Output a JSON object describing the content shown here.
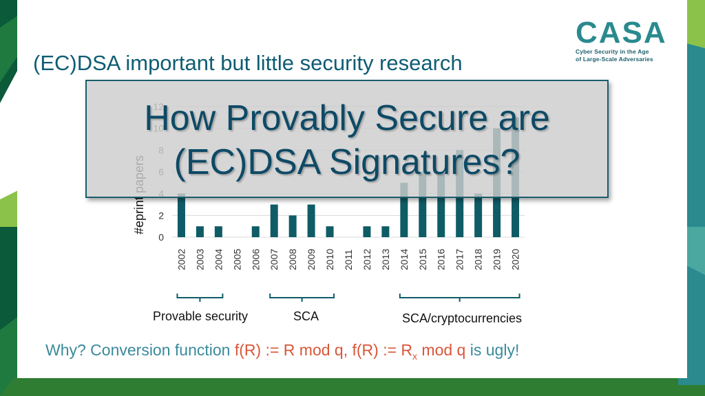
{
  "slide": {
    "logo": {
      "wordmark": "CASA",
      "tagline_line1": "Cyber Security in the Age",
      "tagline_line2": "of Large-Scale Adversaries"
    },
    "title": "(EC)DSA important but little security research",
    "overlay": {
      "line1": "How Provably Secure are",
      "line2": "(EC)DSA Signatures?"
    },
    "groups": [
      {
        "label": "Provable security"
      },
      {
        "label": "SCA"
      },
      {
        "label": "SCA/cryptocurrencies"
      }
    ],
    "bottom": {
      "prefix": "Why? Conversion function ",
      "f1": "f(R) := R mod q",
      "comma": ", ",
      "f2a": "f(R) := R",
      "f2sub": "x",
      "f2b": " mod q",
      "suffix": " is ugly!"
    },
    "colors": {
      "bar": "#0f5c66",
      "title": "#0f5c73",
      "highlight": "#d9573a",
      "accent_green": "#8bc34a",
      "accent_teal": "#2a8a8e",
      "dark_green": "#0b5a3a"
    }
  },
  "chart_data": {
    "type": "bar",
    "ylabel": "#eprint papers",
    "xlabel": "",
    "ylim": [
      0,
      12
    ],
    "y_ticks": [
      0,
      2,
      4,
      6,
      8,
      10,
      12
    ],
    "grid": true,
    "categories": [
      "2002",
      "2003",
      "2004",
      "2005",
      "2006",
      "2007",
      "2008",
      "2009",
      "2010",
      "2011",
      "2012",
      "2013",
      "2014",
      "2015",
      "2016",
      "2017",
      "2018",
      "2019",
      "2020"
    ],
    "values": [
      4,
      1,
      1,
      0,
      1,
      3,
      2,
      3,
      1,
      0,
      1,
      1,
      5,
      6,
      6,
      8,
      4,
      10,
      11
    ]
  }
}
